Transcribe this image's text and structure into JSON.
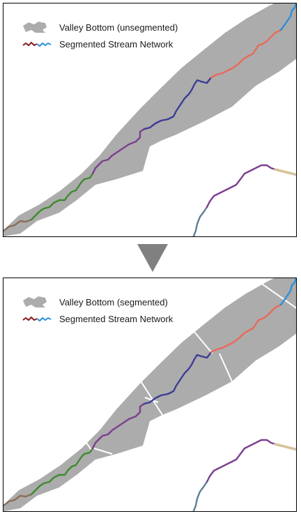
{
  "panels": [
    {
      "legend": {
        "valley_label": "Valley Bottom (unsegmented)",
        "stream_label": "Segmented Stream Network"
      }
    },
    {
      "legend": {
        "valley_label": "Valley Bottom (segmented)",
        "stream_label": "Segmented Stream Network"
      }
    }
  ],
  "colors": {
    "valley_fill": "#acacac",
    "segment_boundary": "#ffffff",
    "stream_segments": [
      "#8b6f5a",
      "#3e8a2e",
      "#7b3f8f",
      "#3c3c95",
      "#e86a5a",
      "#2a8fd8"
    ],
    "side_stream_segments": [
      "#5f7f96",
      "#7b3f8f",
      "#d6c29a"
    ],
    "legend_line": [
      "#8b1a1a",
      "#2a8fd8"
    ],
    "arrow": "#808080"
  }
}
